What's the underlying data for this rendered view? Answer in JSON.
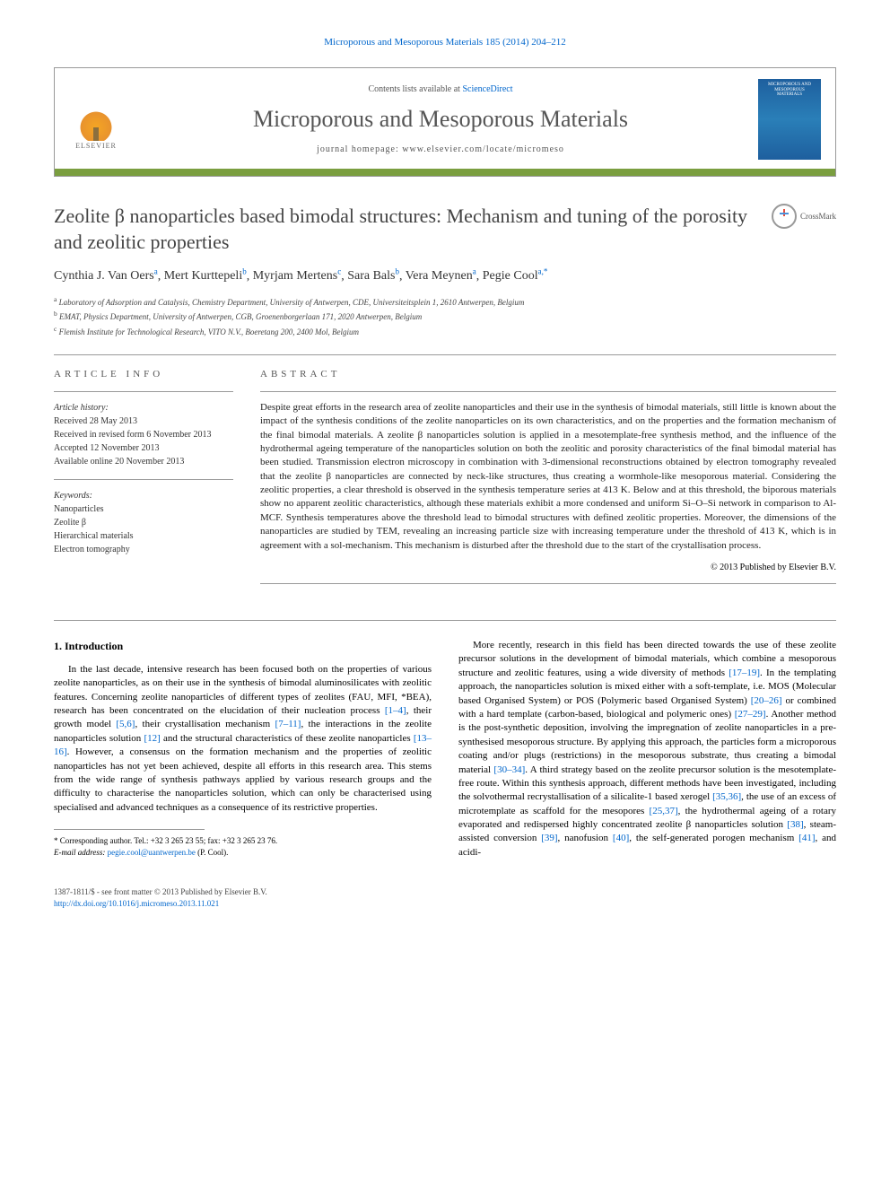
{
  "top_citation": "Microporous and Mesoporous Materials 185 (2014) 204–212",
  "header": {
    "contents_prefix": "Contents lists available at ",
    "contents_link": "ScienceDirect",
    "journal_name": "Microporous and Mesoporous Materials",
    "homepage_label": "journal homepage: ",
    "homepage_url": "www.elsevier.com/locate/micromeso",
    "elsevier_label": "ELSEVIER",
    "cover_title": "MICROPOROUS AND MESOPOROUS MATERIALS"
  },
  "crossmark_label": "CrossMark",
  "article_title": "Zeolite β nanoparticles based bimodal structures: Mechanism and tuning of the porosity and zeolitic properties",
  "authors_html": "Cynthia J. Van Oers ᵃ, Mert Kurttepeli ᵇ, Myrjam Mertens ᶜ, Sara Bals ᵇ, Vera Meynen ᵃ, Pegie Cool ᵃ,*",
  "authors": [
    {
      "name": "Cynthia J. Van Oers",
      "aff": "a"
    },
    {
      "name": "Mert Kurttepeli",
      "aff": "b"
    },
    {
      "name": "Myrjam Mertens",
      "aff": "c"
    },
    {
      "name": "Sara Bals",
      "aff": "b"
    },
    {
      "name": "Vera Meynen",
      "aff": "a"
    },
    {
      "name": "Pegie Cool",
      "aff": "a,*"
    }
  ],
  "affiliations": {
    "a": "Laboratory of Adsorption and Catalysis, Chemistry Department, University of Antwerpen, CDE, Universiteitsplein 1, 2610 Antwerpen, Belgium",
    "b": "EMAT, Physics Department, University of Antwerpen, CGB, Groenenborgerlaan 171, 2020 Antwerpen, Belgium",
    "c": "Flemish Institute for Technological Research, VITO N.V., Boeretang 200, 2400 Mol, Belgium"
  },
  "info_heading": "ARTICLE INFO",
  "abstract_heading": "ABSTRACT",
  "history_label": "Article history:",
  "history": {
    "received": "Received 28 May 2013",
    "revised": "Received in revised form 6 November 2013",
    "accepted": "Accepted 12 November 2013",
    "online": "Available online 20 November 2013"
  },
  "keywords_label": "Keywords:",
  "keywords": [
    "Nanoparticles",
    "Zeolite β",
    "Hierarchical materials",
    "Electron tomography"
  ],
  "abstract_text": "Despite great efforts in the research area of zeolite nanoparticles and their use in the synthesis of bimodal materials, still little is known about the impact of the synthesis conditions of the zeolite nanoparticles on its own characteristics, and on the properties and the formation mechanism of the final bimodal materials. A zeolite β nanoparticles solution is applied in a mesotemplate-free synthesis method, and the influence of the hydrothermal ageing temperature of the nanoparticles solution on both the zeolitic and porosity characteristics of the final bimodal material has been studied. Transmission electron microscopy in combination with 3-dimensional reconstructions obtained by electron tomography revealed that the zeolite β nanoparticles are connected by neck-like structures, thus creating a wormhole-like mesoporous material. Considering the zeolitic properties, a clear threshold is observed in the synthesis temperature series at 413 K. Below and at this threshold, the biporous materials show no apparent zeolitic characteristics, although these materials exhibit a more condensed and uniform Si–O–Si network in comparison to Al-MCF. Synthesis temperatures above the threshold lead to bimodal structures with defined zeolitic properties. Moreover, the dimensions of the nanoparticles are studied by TEM, revealing an increasing particle size with increasing temperature under the threshold of 413 K, which is in agreement with a sol-mechanism. This mechanism is disturbed after the threshold due to the start of the crystallisation process.",
  "abstract_copyright": "© 2013 Published by Elsevier B.V.",
  "section1_heading": "1. Introduction",
  "intro_para1": "In the last decade, intensive research has been focused both on the properties of various zeolite nanoparticles, as on their use in the synthesis of bimodal aluminosilicates with zeolitic features. Concerning zeolite nanoparticles of different types of zeolites (FAU, MFI, *BEA), research has been concentrated on the elucidation of their nucleation process [1–4], their growth model [5,6], their crystallisation mechanism [7–11], the interactions in the zeolite nanoparticles solution [12] and the structural characteristics of these zeolite nanoparticles [13–16]. However, a consensus on the formation mechanism and the properties of zeolitic nanoparticles has not yet been achieved, despite all efforts in this research area. This stems from the wide range of synthesis pathways applied by various research groups and the difficulty to characterise the nanoparticles solution, which can only be characterised using specialised and advanced techniques as a consequence of its restrictive properties.",
  "intro_para2": "More recently, research in this field has been directed towards the use of these zeolite precursor solutions in the development of bimodal materials, which combine a mesoporous structure and zeolitic features, using a wide diversity of methods [17–19]. In the templating approach, the nanoparticles solution is mixed either with a soft-template, i.e. MOS (Molecular based Organised System) or POS (Polymeric based Organised System) [20–26] or combined with a hard template (carbon-based, biological and polymeric ones) [27–29]. Another method is the post-synthetic deposition, involving the impregnation of zeolite nanoparticles in a pre-synthesised mesoporous structure. By applying this approach, the particles form a microporous coating and/or plugs (restrictions) in the mesoporous substrate, thus creating a bimodal material [30–34]. A third strategy based on the zeolite precursor solution is the mesotemplate-free route. Within this synthesis approach, different methods have been investigated, including the solvothermal recrystallisation of a silicalite-1 based xerogel [35,36], the use of an excess of microtemplate as scaffold for the mesopores [25,37], the hydrothermal ageing of a rotary evaporated and redispersed highly concentrated zeolite β nanoparticles solution [38], steam-assisted conversion [39], nanofusion [40], the self-generated porogen mechanism [41], and acidi-",
  "corresponding": {
    "label": "* Corresponding author. Tel.: +32 3 265 23 55; fax: +32 3 265 23 76.",
    "email_label": "E-mail address:",
    "email": "pegie.cool@uantwerpen.be",
    "email_name": "(P. Cool)."
  },
  "footer": {
    "issn_line": "1387-1811/$ - see front matter © 2013 Published by Elsevier B.V.",
    "doi": "http://dx.doi.org/10.1016/j.micromeso.2013.11.021"
  },
  "colors": {
    "link": "#0066cc",
    "accent_bar": "#7a9e3f",
    "text": "#222222",
    "heading_gray": "#555555"
  }
}
